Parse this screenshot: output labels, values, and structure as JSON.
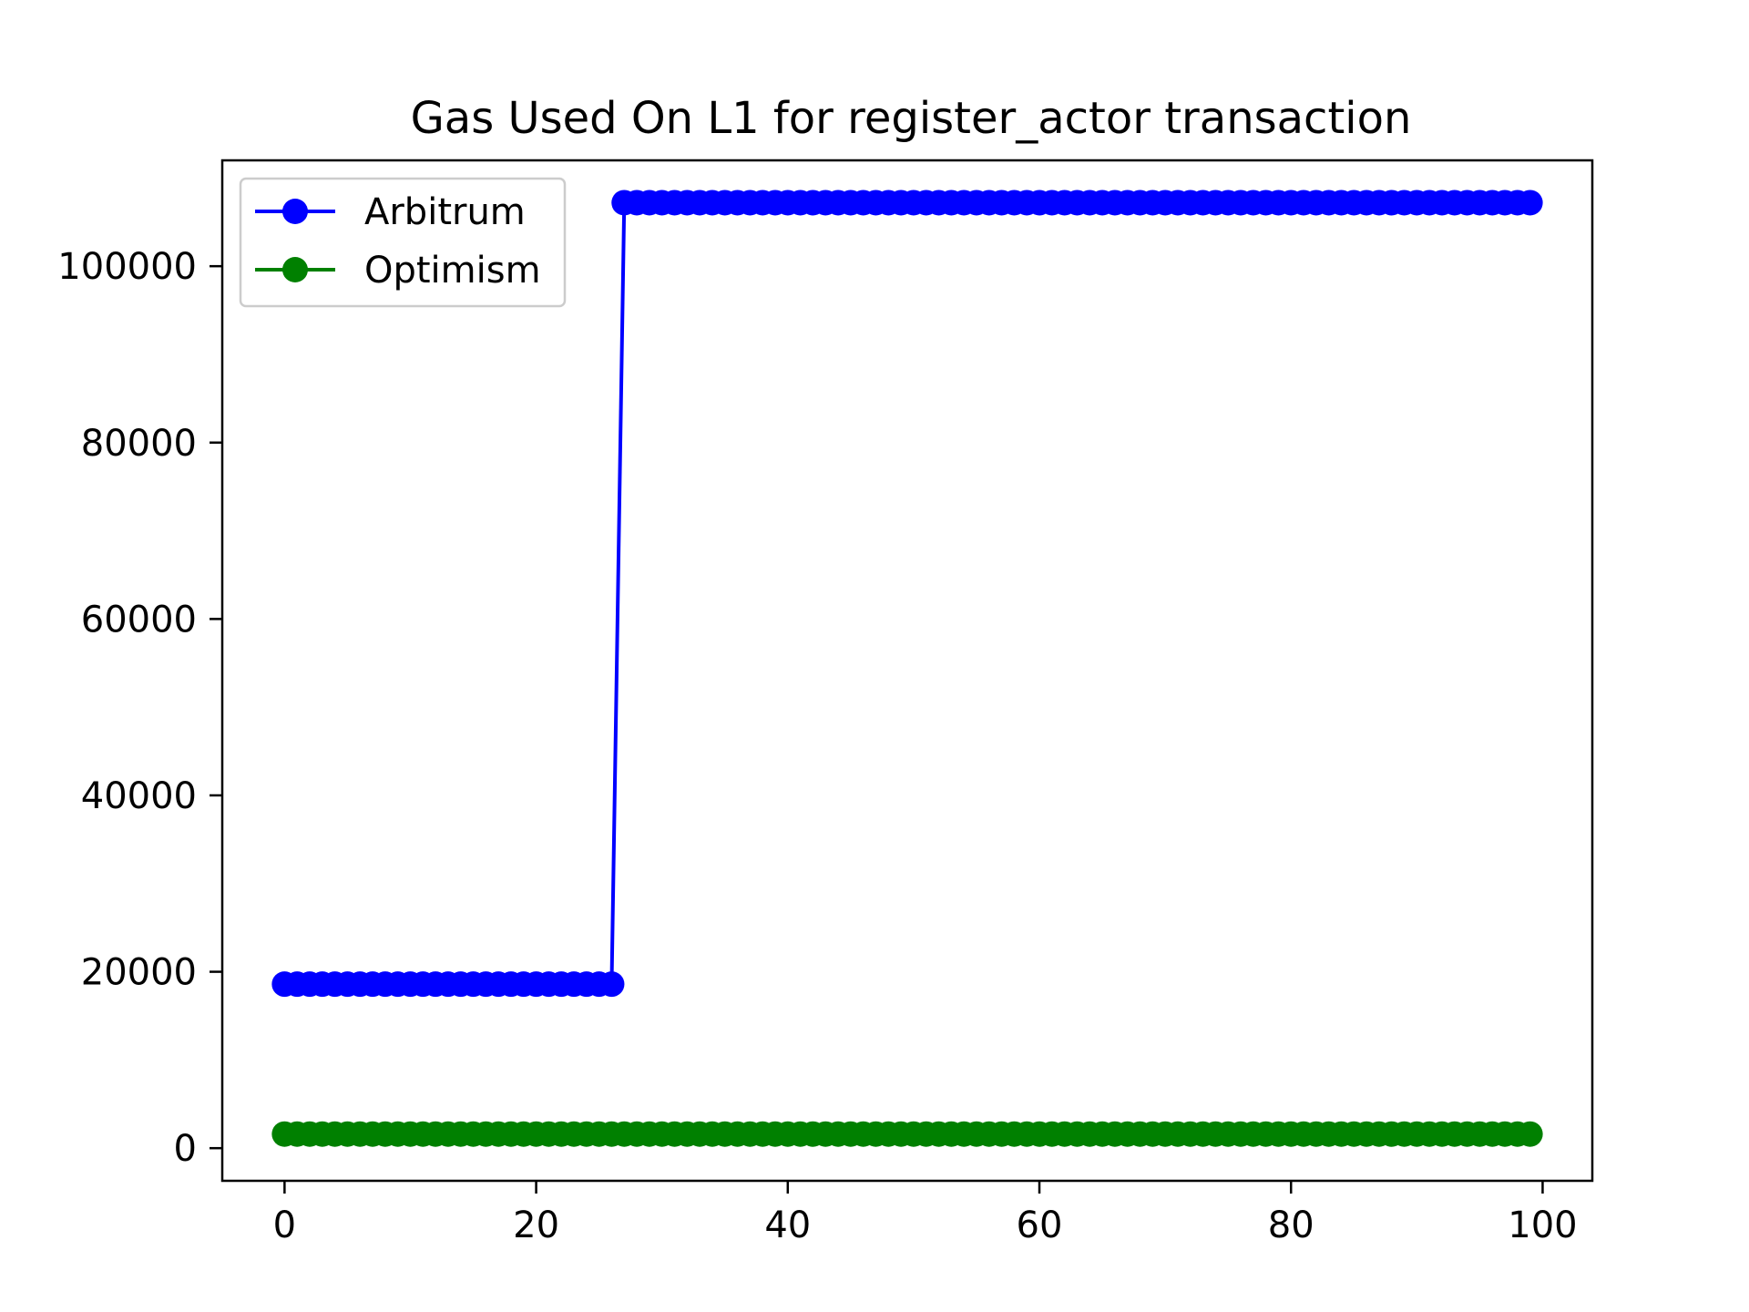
{
  "chart_data": {
    "type": "line",
    "title": "Gas Used On L1 for register_actor transaction",
    "xlabel": "",
    "ylabel": "",
    "xlim": [
      -4.95,
      103.95
    ],
    "ylim": [
      -3700,
      112000
    ],
    "x_ticks": [
      0,
      20,
      40,
      60,
      80,
      100
    ],
    "y_ticks": [
      0,
      20000,
      40000,
      60000,
      80000,
      100000
    ],
    "grid": false,
    "legend": "upper-left",
    "series": [
      {
        "name": "Arbitrum",
        "color": "#0000ff",
        "marker": "circle",
        "segments": [
          {
            "x_start": 0,
            "x_end": 26,
            "y": 18600
          },
          {
            "x_start": 27,
            "x_end": 99,
            "y": 107200
          }
        ]
      },
      {
        "name": "Optimism",
        "color": "#008000",
        "marker": "circle",
        "segments": [
          {
            "x_start": 0,
            "x_end": 99,
            "y": 1600
          }
        ]
      }
    ]
  }
}
